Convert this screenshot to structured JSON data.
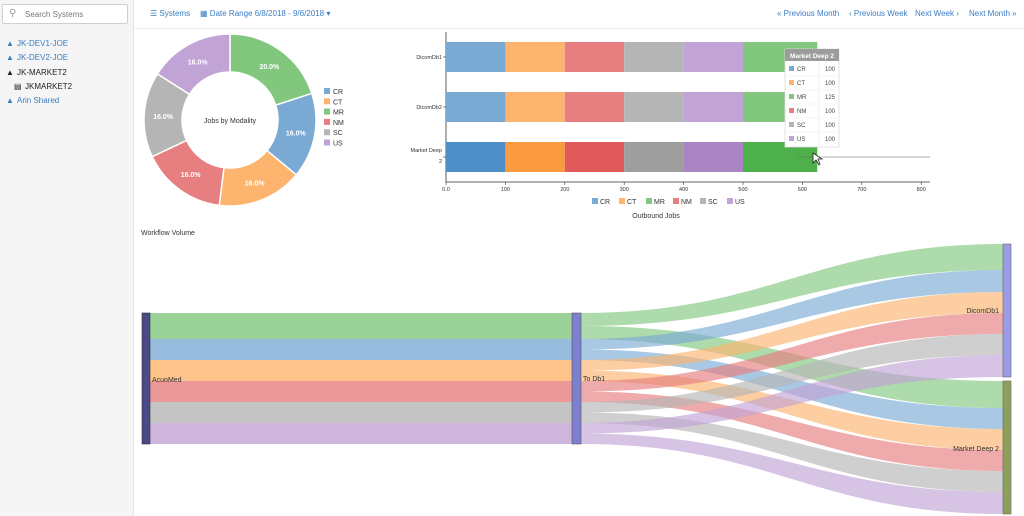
{
  "search": {
    "placeholder": "Search Systems",
    "icon": "search-icon"
  },
  "sidebar": {
    "items": [
      {
        "label": "JK-DEV1-JOE",
        "icon": "sitemap-icon"
      },
      {
        "label": "JK-DEV2-JOE",
        "icon": "sitemap-icon"
      },
      {
        "label": "JK-MARKET2",
        "icon": "sitemap-icon"
      },
      {
        "label": "JKMARKET2",
        "icon": "server-icon"
      },
      {
        "label": "Arin Shared",
        "icon": "sitemap-icon"
      }
    ]
  },
  "toolbar": {
    "systems_label": "Systems",
    "date_range_label": "Date Range 6/8/2018 - 9/6/2018",
    "prev_month": "« Previous Month",
    "prev_week": "‹ Previous Week",
    "next_week": "Next Week ›",
    "next_month": "Next Month »"
  },
  "colors": {
    "CR": "#7aaad4",
    "CT": "#fcb46e",
    "MR": "#82c77e",
    "NM": "#e77e7f",
    "SC": "#b5b5b5",
    "US": "#c1a3d6"
  },
  "workflow": {
    "title": "Workflow Volume",
    "nodes": [
      "AcuoMed",
      "To Db1",
      "DicomDb1",
      "Market Deep 2"
    ]
  },
  "tooltip": {
    "title": "Market Deep 2",
    "rows": [
      {
        "label": "CR",
        "value": "100"
      },
      {
        "label": "CT",
        "value": "100"
      },
      {
        "label": "MR",
        "value": "125"
      },
      {
        "label": "NM",
        "value": "100"
      },
      {
        "label": "SC",
        "value": "100"
      },
      {
        "label": "US",
        "value": "100"
      }
    ]
  },
  "chart_data": [
    {
      "type": "pie",
      "title": "Jobs by Modality",
      "categories": [
        "CR",
        "CT",
        "MR",
        "NM",
        "SC",
        "US"
      ],
      "values": [
        16.0,
        16.0,
        20.0,
        16.0,
        16.0,
        16.0
      ],
      "labels": [
        "16.0%",
        "16.0%",
        "20.0%",
        "16.0%",
        "16.0%",
        "16.0%"
      ],
      "legend": "right"
    },
    {
      "type": "bar",
      "orientation": "horizontal",
      "stacked": true,
      "xlabel": "Outbound Jobs",
      "categories": [
        "DicomDb1",
        "DicomDb2",
        "Market Deep 2"
      ],
      "series": [
        {
          "name": "CR",
          "values": [
            100,
            100,
            100
          ]
        },
        {
          "name": "CT",
          "values": [
            100,
            100,
            100
          ]
        },
        {
          "name": "NM",
          "values": [
            100,
            100,
            100
          ]
        },
        {
          "name": "SC",
          "values": [
            100,
            100,
            100
          ]
        },
        {
          "name": "US",
          "values": [
            100,
            100,
            100
          ]
        },
        {
          "name": "MR",
          "values": [
            125,
            125,
            125
          ]
        }
      ],
      "xticks": [
        "0.0",
        "100",
        "200",
        "300",
        "400",
        "500",
        "600",
        "700",
        "800"
      ],
      "xlim": [
        0,
        800
      ],
      "legend": "bottom"
    }
  ]
}
